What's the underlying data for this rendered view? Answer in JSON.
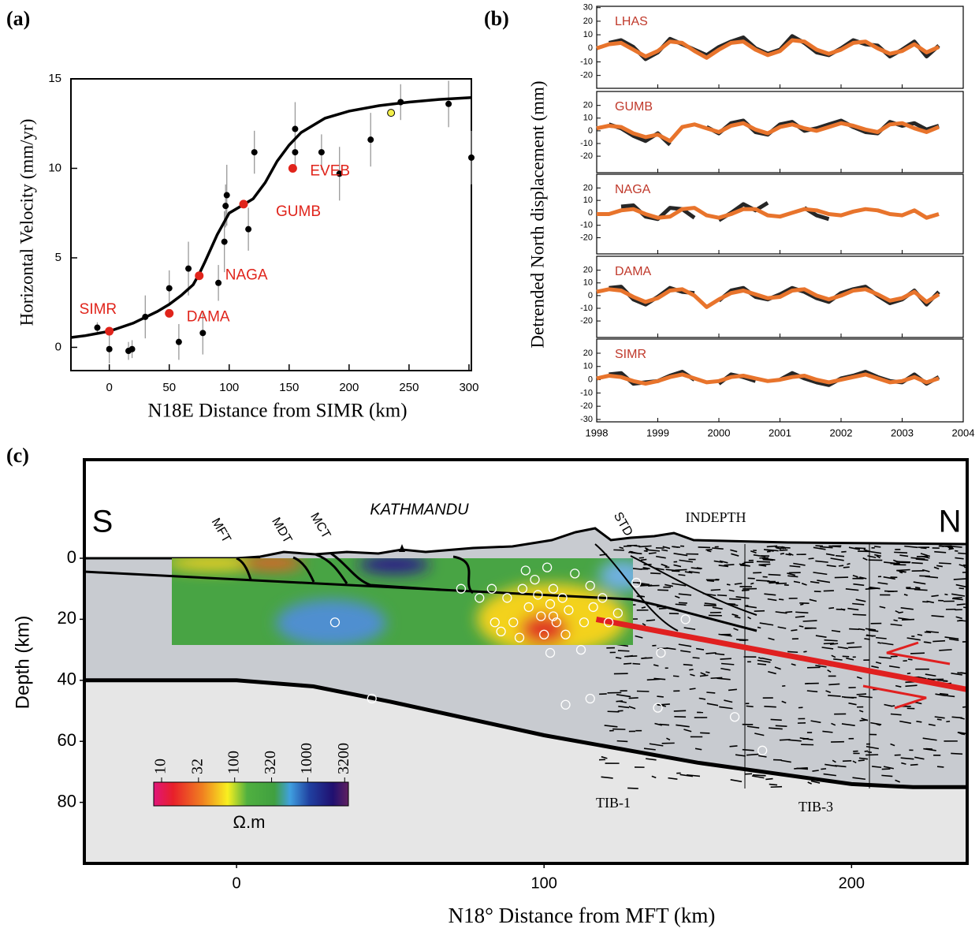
{
  "chart_data": [
    {
      "type": "scatter",
      "panel_label": "(a)",
      "x_label": "N18E Distance from SIMR (km)",
      "y_label": "Horizontal Velocity  (mm/yr)",
      "xlim": [
        -32,
        302
      ],
      "ylim": [
        -1.3,
        15
      ],
      "xticks": [
        0,
        50,
        100,
        150,
        200,
        250,
        300
      ],
      "yticks": [
        0,
        5,
        10,
        15
      ],
      "points": {
        "color": "#000000",
        "x": [
          -10,
          0,
          16,
          19,
          30,
          50,
          58,
          66,
          78,
          91,
          96,
          97,
          98,
          116,
          121,
          155,
          155,
          177,
          192,
          218,
          243,
          283,
          302
        ],
        "values": [
          1.1,
          -0.1,
          -0.2,
          -0.1,
          1.7,
          3.3,
          0.3,
          4.4,
          0.8,
          3.6,
          5.9,
          7.9,
          8.5,
          6.6,
          10.9,
          12.2,
          10.9,
          10.9,
          9.7,
          11.6,
          13.7,
          13.6,
          10.6
        ],
        "errors": [
          0.3,
          0.8,
          0.5,
          0.5,
          1.2,
          1.0,
          1.0,
          1.5,
          1.2,
          1.0,
          1.7,
          1.2,
          1.7,
          1.2,
          1.2,
          1.5,
          1.0,
          1.0,
          1.5,
          1.5,
          1.0,
          1.3,
          1.5
        ]
      },
      "stations": {
        "color": "#e0241b",
        "labels": [
          "SIMR",
          "DAMA",
          "NAGA",
          "GUMB",
          "EVEB"
        ],
        "x": [
          0,
          50,
          75,
          112,
          153
        ],
        "values": [
          0.9,
          1.9,
          4.0,
          8.0,
          10.0
        ]
      },
      "highlight": {
        "color": "#f2ee4a",
        "x": [
          235
        ],
        "values": [
          13.1
        ]
      },
      "model": {
        "color": "#000000",
        "x": [
          -32,
          -20,
          0,
          20,
          40,
          50,
          60,
          70,
          75,
          80,
          90,
          100,
          110,
          120,
          130,
          140,
          150,
          160,
          180,
          200,
          225,
          250,
          275,
          302
        ],
        "values": [
          0.55,
          0.65,
          0.9,
          1.35,
          2.0,
          2.4,
          2.9,
          3.5,
          4.1,
          4.8,
          6.3,
          7.5,
          7.9,
          8.3,
          9.2,
          10.4,
          11.3,
          12.0,
          12.8,
          13.2,
          13.5,
          13.7,
          13.85,
          13.95
        ]
      }
    },
    {
      "type": "line",
      "panel_label": "(b)",
      "y_label": "Detrended North  displacement (mm)",
      "xlim": [
        1998,
        2004
      ],
      "xticks": [
        1998,
        1999,
        2000,
        2001,
        2002,
        2003,
        2004
      ],
      "x": [
        1998,
        1998.2,
        1998.4,
        1998.6,
        1998.8,
        1999,
        1999.2,
        1999.4,
        1999.6,
        1999.8,
        2000,
        2000.2,
        2000.4,
        2000.6,
        2000.8,
        2001,
        2001.2,
        2001.4,
        2001.6,
        2001.8,
        2002,
        2002.2,
        2002.4,
        2002.6,
        2002.8,
        2003,
        2003.2,
        2003.4,
        2003.6
      ],
      "subplots": [
        {
          "name": "LHAS",
          "ylim": [
            -29.5,
            31
          ],
          "yticks": [
            30,
            20,
            10,
            0,
            -10,
            -20
          ],
          "observed": {
            "color": "#000000",
            "values": [
              null,
              4,
              6,
              1,
              -8,
              -3,
              7,
              3,
              -1,
              -5,
              1,
              5,
              8,
              0,
              -4,
              -1,
              9,
              4,
              -3,
              -5,
              0,
              6,
              3,
              2,
              -6,
              -1,
              5,
              -6,
              2
            ]
          },
          "model": {
            "color": "#e8742c",
            "values": [
              0,
              3,
              4,
              -1,
              -6,
              -2,
              5,
              4,
              -2,
              -7,
              -1,
              4,
              5,
              -1,
              -5,
              -2,
              6,
              5,
              -1,
              -4,
              -1,
              4,
              5,
              0,
              -4,
              -2,
              3,
              -3,
              1
            ]
          }
        },
        {
          "name": "GUMB",
          "ylim": [
            -33,
            31
          ],
          "yticks": [
            20,
            10,
            0,
            -10,
            -20
          ],
          "observed": {
            "color": "#000000",
            "values": [
              null,
              5,
              2,
              -4,
              -8,
              -2,
              -11,
              null,
              null,
              3,
              -2,
              6,
              8,
              -1,
              -3,
              5,
              7,
              0,
              2,
              5,
              8,
              3,
              -1,
              -2,
              7,
              4,
              6,
              1,
              4
            ]
          },
          "model": {
            "color": "#e8742c",
            "values": [
              2,
              4,
              3,
              -2,
              -5,
              -3,
              -8,
              3,
              5,
              2,
              -1,
              4,
              6,
              1,
              -2,
              3,
              5,
              2,
              0,
              3,
              6,
              4,
              1,
              -1,
              5,
              6,
              2,
              -1,
              3
            ]
          }
        },
        {
          "name": "NAGA",
          "ylim": [
            -33,
            31
          ],
          "yticks": [
            20,
            10,
            0,
            -10,
            -20
          ],
          "observed": {
            "color": "#000000",
            "values": [
              null,
              null,
              5,
              6,
              -3,
              -5,
              4,
              3,
              -4,
              null,
              -6,
              0,
              7,
              2,
              8,
              null,
              null,
              4,
              -2,
              -5,
              null,
              null,
              null,
              null,
              null,
              null,
              null,
              null,
              null
            ]
          },
          "model": {
            "color": "#e8742c",
            "values": [
              -1,
              -1,
              2,
              3,
              -1,
              -4,
              -3,
              3,
              4,
              -2,
              -4,
              -1,
              3,
              3,
              -2,
              -3,
              0,
              3,
              2,
              -1,
              -2,
              1,
              3,
              2,
              -1,
              -2,
              2,
              -4,
              -1
            ]
          }
        },
        {
          "name": "DAMA",
          "ylim": [
            -33,
            31
          ],
          "yticks": [
            20,
            10,
            0,
            -10,
            -20
          ],
          "observed": {
            "color": "#000000",
            "values": [
              null,
              6,
              7,
              -3,
              -7,
              -1,
              6,
              3,
              2,
              null,
              -4,
              4,
              6,
              -1,
              -3,
              1,
              6,
              3,
              -2,
              -5,
              2,
              5,
              7,
              0,
              -6,
              -3,
              4,
              -7,
              3
            ]
          },
          "model": {
            "color": "#e8742c",
            "values": [
              3,
              5,
              4,
              -1,
              -5,
              -2,
              4,
              5,
              0,
              -9,
              -3,
              2,
              4,
              1,
              -2,
              -1,
              4,
              5,
              0,
              -3,
              0,
              4,
              5,
              1,
              -4,
              -2,
              3,
              -5,
              1
            ]
          }
        },
        {
          "name": "SIMR",
          "ylim": [
            -31.8,
            30.7
          ],
          "yticks": [
            20,
            10,
            0,
            -10,
            -20,
            -30
          ],
          "observed": {
            "color": "#000000",
            "values": [
              null,
              4,
              5,
              -3,
              -2,
              -1,
              3,
              6,
              0,
              null,
              -3,
              4,
              2,
              -1,
              null,
              0,
              5,
              1,
              -2,
              -4,
              1,
              3,
              6,
              2,
              -1,
              -2,
              4,
              -3,
              2
            ]
          },
          "model": {
            "color": "#e8742c",
            "values": [
              1,
              3,
              2,
              -1,
              -3,
              -1,
              2,
              4,
              1,
              -2,
              -1,
              2,
              3,
              1,
              -1,
              0,
              2,
              3,
              0,
              -2,
              0,
              2,
              4,
              1,
              -2,
              -1,
              2,
              -2,
              1
            ]
          }
        }
      ]
    },
    {
      "type": "section",
      "panel_label": "(c)",
      "x_label": "N18° Distance from MFT (km)",
      "y_label": "Depth (km)",
      "xlim": [
        -49.5,
        237.6
      ],
      "ylim": [
        -32.3,
        100
      ],
      "xticks": [
        0,
        100,
        200
      ],
      "yticks": [
        0,
        20,
        40,
        60,
        80
      ],
      "annotations": [
        "S",
        "N",
        "MFT",
        "MDT",
        "MCT",
        "KATHMANDU",
        "STD",
        "INDEPTH",
        "TIB-1",
        "TIB-3"
      ],
      "moho": {
        "color": "#000000",
        "x": [
          -49.5,
          0,
          25,
          50,
          100,
          150,
          200,
          220,
          237.6
        ],
        "values": [
          40,
          40,
          42,
          47,
          58,
          67,
          74,
          75,
          75
        ]
      },
      "thrust": {
        "color": "#e02020",
        "x": [
          117,
          237.6
        ],
        "values": [
          20,
          43
        ]
      },
      "earthquakes": {
        "color": "#ffffff",
        "x": [
          73,
          32,
          44,
          107,
          115,
          137,
          162,
          171,
          102,
          112,
          138,
          146,
          130,
          115,
          110,
          124,
          88,
          90,
          93,
          94,
          95,
          97,
          98,
          99,
          101,
          102,
          103,
          104,
          106,
          107,
          108,
          86,
          84,
          92,
          100,
          103,
          113,
          116,
          119,
          121,
          83,
          79
        ],
        "values": [
          10,
          21,
          46,
          48,
          46,
          49,
          52,
          63,
          31,
          30,
          31,
          20,
          8,
          9,
          5,
          18,
          13,
          21,
          10,
          4,
          16,
          7,
          12,
          19,
          3,
          15,
          10,
          21,
          13,
          25,
          17,
          24,
          21,
          26,
          25,
          19,
          21,
          16,
          13,
          21,
          10,
          13
        ]
      },
      "colorbar": {
        "scale": "log",
        "lim": [
          7.8,
          3600
        ],
        "ticks": [
          10,
          32,
          100,
          320,
          1000,
          3200
        ],
        "label": "Ω.m"
      }
    }
  ]
}
